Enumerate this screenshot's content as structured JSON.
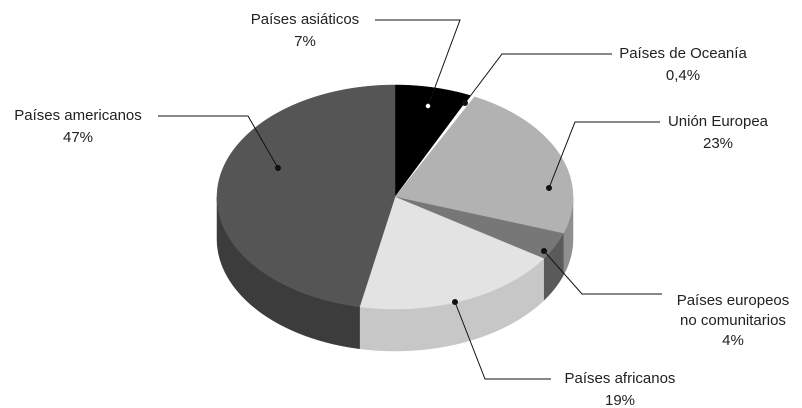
{
  "chart_data": {
    "type": "pie",
    "style": "3d",
    "slices": [
      {
        "name": "Países asiáticos",
        "label_lines": [
          "Países asiáticos"
        ],
        "value": 7,
        "value_label": "7%",
        "color": "#000000",
        "side_color": "#000000"
      },
      {
        "name": "Países de Oceanía",
        "label_lines": [
          "Países de Oceanía"
        ],
        "value": 0.4,
        "value_label": "0,4%",
        "color": "#ffffff",
        "side_color": "#ffffff"
      },
      {
        "name": "Unión Europea",
        "label_lines": [
          "Unión Europea"
        ],
        "value": 23,
        "value_label": "23%",
        "color": "#b2b2b2",
        "side_color": "#8f8f8f"
      },
      {
        "name": "Países europeos no comunitarios",
        "label_lines": [
          "Países europeos",
          "no comunitarios"
        ],
        "value": 4,
        "value_label": "4%",
        "color": "#777777",
        "side_color": "#5a5a5a"
      },
      {
        "name": "Países africanos",
        "label_lines": [
          "Países africanos"
        ],
        "value": 19,
        "value_label": "19%",
        "color": "#e3e3e3",
        "side_color": "#c7c7c7"
      },
      {
        "name": "Países americanos",
        "label_lines": [
          "Países americanos"
        ],
        "value": 47,
        "value_label": "47%",
        "color": "#555555",
        "side_color": "#3c3c3c"
      }
    ]
  }
}
